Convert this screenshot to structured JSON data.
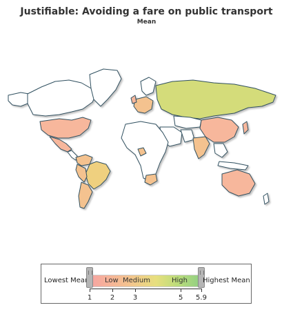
{
  "title": "Justifiable: Avoiding a fare on public transport",
  "subtitle": "Mean",
  "legend": {
    "lowest_label": "Lowest Mean",
    "highest_label": "Highest Mean",
    "band_low": "Low",
    "band_medium": "Medium",
    "band_high": "High",
    "ticks": [
      "1",
      "2",
      "3",
      "5",
      "5.9"
    ],
    "scale_min": 1,
    "scale_max": 5.9,
    "colors": {
      "low": "#f7a3a3",
      "medium": "#f4c28f",
      "high": "#b9dc7a",
      "no_data": "#ffffff",
      "border": "#2f4f5f"
    }
  },
  "regions": {
    "north_america_usa_mexico": "low",
    "canada_alaska": "no_data",
    "greenland": "no_data",
    "central_america": "no_data",
    "south_america_brazil_peru": "medium_high",
    "argentina_chile": "medium",
    "western_europe": "medium",
    "russia_kazakhstan": "high",
    "china": "low",
    "india": "medium",
    "middle_east": "no_data",
    "africa": "no_data",
    "south_africa": "medium",
    "australia": "medium",
    "southeast_asia": "no_data"
  }
}
